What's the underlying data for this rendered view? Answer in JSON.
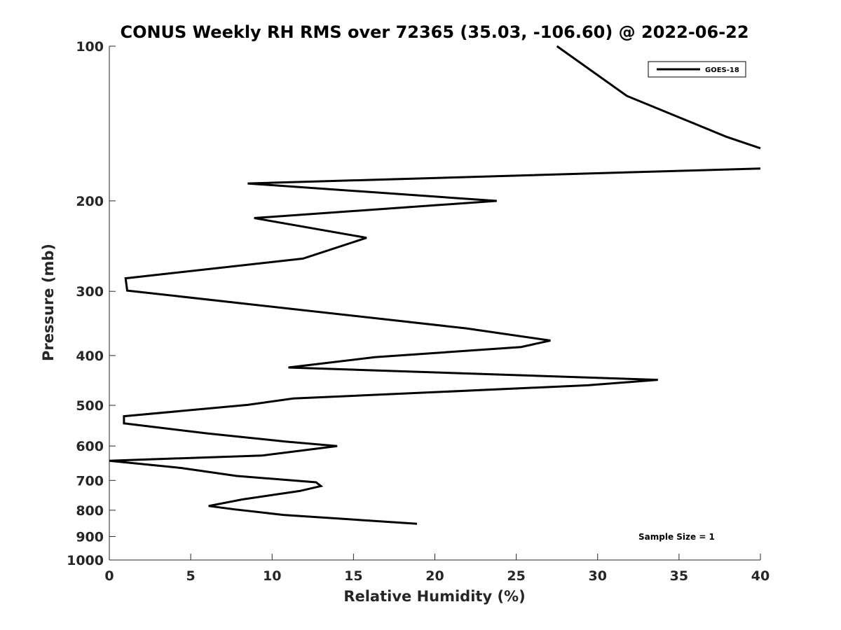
{
  "chart_data": {
    "type": "line",
    "title": "CONUS Weekly RH RMS over 72365 (35.03, -106.60) @ 2022-06-22",
    "xlabel": "Relative Humidity (%)",
    "ylabel": "Pressure (mb)",
    "xlim": [
      0,
      40
    ],
    "ylim": [
      100,
      1000
    ],
    "yscale": "log",
    "y_reversed": true,
    "grid": false,
    "legend_position": "top-right",
    "x_ticks": [
      0,
      5,
      10,
      15,
      20,
      25,
      30,
      35,
      40
    ],
    "y_ticks": [
      100,
      200,
      300,
      400,
      500,
      600,
      700,
      800,
      900,
      1000
    ],
    "series": [
      {
        "name": "GOES-18",
        "color": "#000000",
        "x": [
          27.5,
          31.8,
          37.9,
          40,
          null,
          40,
          8.5,
          23.8,
          8.9,
          15.8,
          11.9,
          1.0,
          1.1,
          21.9,
          27.1,
          25.3,
          16.3,
          11.0,
          33.7,
          29.4,
          11.3,
          8.5,
          0.9,
          0.9,
          6.0,
          10.8,
          14.0,
          9.4,
          0,
          4.4,
          7.8,
          12.7,
          13.0,
          11.7,
          8.2,
          6.1,
          7.7,
          10.7,
          18.9
        ],
        "y": [
          100,
          125,
          150,
          158,
          null,
          173,
          185,
          200,
          216,
          236,
          259,
          283,
          299,
          354,
          374,
          385,
          403,
          422,
          446,
          457,
          485,
          499,
          525,
          542,
          567,
          588,
          600,
          626,
          641,
          662,
          686,
          706,
          718,
          734,
          762,
          785,
          797,
          817,
          850
        ]
      }
    ],
    "annotations": [
      "Sample Size = 1"
    ]
  }
}
